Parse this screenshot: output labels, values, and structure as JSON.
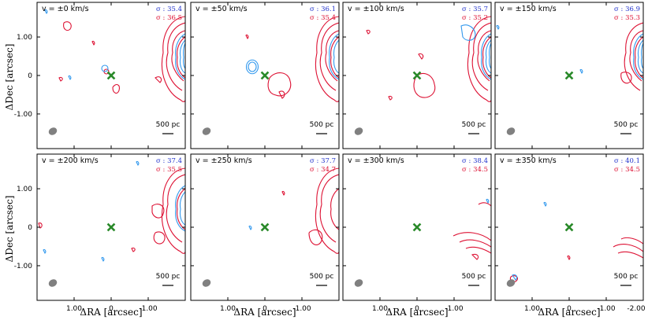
{
  "chart_data": {
    "type": "contour-map-grid",
    "xlabel": "ΔRA [arcsec]",
    "ylabel": "ΔDec [arcsec]",
    "xlim": [
      2.0,
      -2.0
    ],
    "ylim": [
      -1.9,
      1.9
    ],
    "x_ticks": [
      1.0,
      0.0,
      -1.0,
      -2.0
    ],
    "x_tick_labels": [
      "1.00",
      "0",
      "-1.00",
      "-2.00"
    ],
    "y_ticks": [
      1.0,
      0.0,
      -1.0
    ],
    "y_tick_labels": [
      "1.00",
      "0",
      "-1.00"
    ],
    "scale_bar_label": "500 pc",
    "marker_position": [
      0.0,
      0.0
    ],
    "colors": {
      "blue": "#3399ee",
      "red": "#dd1133",
      "marker": "#2a8a2a",
      "beam": "#808080",
      "sigma_blue": "#2233cc",
      "sigma_red": "#dd1133"
    },
    "panels": [
      {
        "velocity_label": "v = ±0 km/s",
        "sigma_blue": "σ : 35.4",
        "sigma_red": "σ : 36.5"
      },
      {
        "velocity_label": "v = ±50 km/s",
        "sigma_blue": "σ : 36.1",
        "sigma_red": "σ : 35.4"
      },
      {
        "velocity_label": "v = ±100 km/s",
        "sigma_blue": "σ : 35.7",
        "sigma_red": "σ : 35.2"
      },
      {
        "velocity_label": "v = ±150 km/s",
        "sigma_blue": "σ : 36.9",
        "sigma_red": "σ : 35.3"
      },
      {
        "velocity_label": "v = ±200 km/s",
        "sigma_blue": "σ : 37.4",
        "sigma_red": "σ : 35.5"
      },
      {
        "velocity_label": "v = ±250 km/s",
        "sigma_blue": "σ : 37.7",
        "sigma_red": "σ : 34.7"
      },
      {
        "velocity_label": "v = ±300 km/s",
        "sigma_blue": "σ : 38.4",
        "sigma_red": "σ : 34.5"
      },
      {
        "velocity_label": "v = ±350 km/s",
        "sigma_blue": "σ : 40.1",
        "sigma_red": "σ : 34.5"
      }
    ]
  }
}
